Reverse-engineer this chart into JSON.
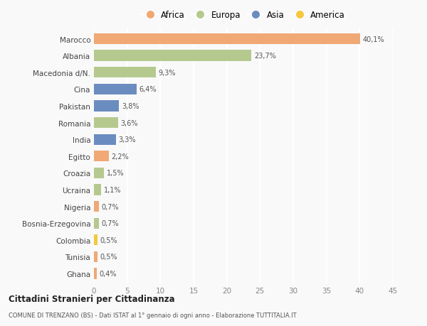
{
  "countries": [
    "Marocco",
    "Albania",
    "Macedonia d/N.",
    "Cina",
    "Pakistan",
    "Romania",
    "India",
    "Egitto",
    "Croazia",
    "Ucraina",
    "Nigeria",
    "Bosnia-Erzegovina",
    "Colombia",
    "Tunisia",
    "Ghana"
  ],
  "values": [
    40.1,
    23.7,
    9.3,
    6.4,
    3.8,
    3.6,
    3.3,
    2.2,
    1.5,
    1.1,
    0.7,
    0.7,
    0.5,
    0.5,
    0.4
  ],
  "labels": [
    "40,1%",
    "23,7%",
    "9,3%",
    "6,4%",
    "3,8%",
    "3,6%",
    "3,3%",
    "2,2%",
    "1,5%",
    "1,1%",
    "0,7%",
    "0,7%",
    "0,5%",
    "0,5%",
    "0,4%"
  ],
  "continents": [
    "Africa",
    "Europa",
    "Europa",
    "Asia",
    "Asia",
    "Europa",
    "Asia",
    "Africa",
    "Europa",
    "Europa",
    "Africa",
    "Europa",
    "America",
    "Africa",
    "Africa"
  ],
  "colors": {
    "Africa": "#F0A875",
    "Europa": "#B5C98E",
    "Asia": "#6B8CBF",
    "America": "#F5C842"
  },
  "bg_color": "#f9f9f9",
  "title1": "Cittadini Stranieri per Cittadinanza",
  "title2": "COMUNE DI TRENZANO (BS) - Dati ISTAT al 1° gennaio di ogni anno - Elaborazione TUTTITALIA.IT",
  "xlim": [
    0,
    45
  ],
  "xticks": [
    0,
    5,
    10,
    15,
    20,
    25,
    30,
    35,
    40,
    45
  ]
}
